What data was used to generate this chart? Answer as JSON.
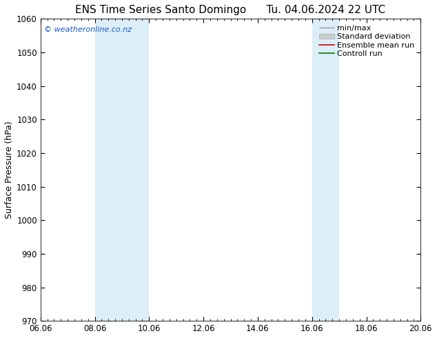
{
  "title": "ENS Time Series Santo Domingo      Tu. 04.06.2024 22 UTC",
  "ylabel": "Surface Pressure (hPa)",
  "ylim": [
    970,
    1060
  ],
  "yticks": [
    970,
    980,
    990,
    1000,
    1010,
    1020,
    1030,
    1040,
    1050,
    1060
  ],
  "xlim": [
    0,
    14
  ],
  "xtick_labels": [
    "06.06",
    "08.06",
    "10.06",
    "12.06",
    "14.06",
    "16.06",
    "18.06",
    "20.06"
  ],
  "xtick_positions": [
    0,
    2,
    4,
    6,
    8,
    10,
    12,
    14
  ],
  "shaded_bands": [
    {
      "xmin": 2.0,
      "xmax": 4.0
    },
    {
      "xmin": 10.0,
      "xmax": 11.0
    }
  ],
  "band_color": "#dceef8",
  "watermark": "© weatheronline.co.nz",
  "watermark_color": "#1155cc",
  "legend_labels": [
    "min/max",
    "Standard deviation",
    "Ensemble mean run",
    "Controll run"
  ],
  "minmax_color": "#999999",
  "std_color": "#cccccc",
  "ensemble_color": "#cc0000",
  "control_color": "#007700",
  "background_color": "#ffffff",
  "title_fontsize": 11,
  "axis_label_fontsize": 9,
  "tick_fontsize": 8.5,
  "legend_fontsize": 8
}
